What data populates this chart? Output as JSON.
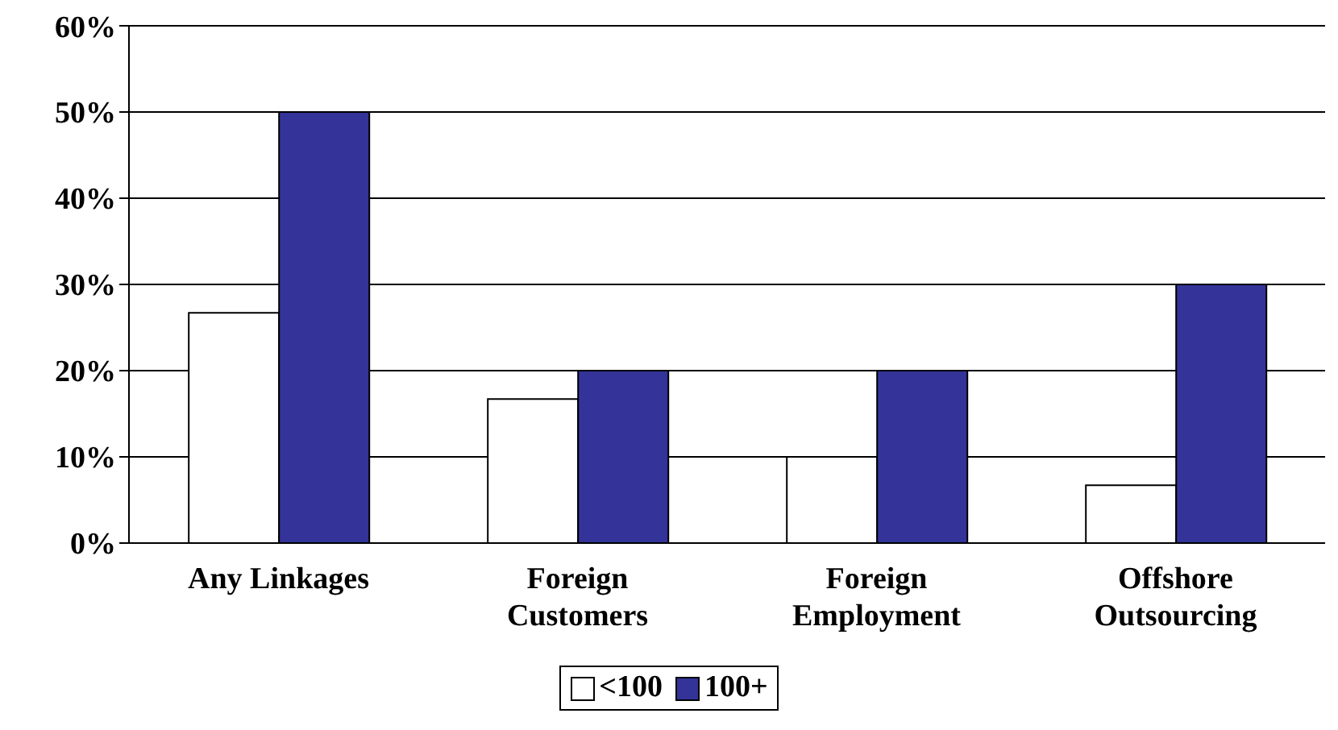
{
  "chart_data": {
    "type": "bar",
    "categories": [
      "Any Linkages",
      "Foreign Customers",
      "Foreign Employment",
      "Offshore Outsourcing"
    ],
    "series": [
      {
        "name": "<100",
        "color": "#ffffff",
        "values": [
          26.7,
          16.7,
          10,
          6.7
        ]
      },
      {
        "name": "100+",
        "color": "#333399",
        "values": [
          50,
          20,
          20,
          30
        ]
      }
    ],
    "ylim": [
      0,
      60
    ],
    "yticks": [
      {
        "value": 0,
        "label": "0%"
      },
      {
        "value": 10,
        "label": "10%"
      },
      {
        "value": 20,
        "label": "20%"
      },
      {
        "value": 30,
        "label": "30%"
      },
      {
        "value": 40,
        "label": "40%"
      },
      {
        "value": 50,
        "label": "50%"
      },
      {
        "value": 60,
        "label": "60%"
      }
    ],
    "grid": "y",
    "legend": "bottom"
  }
}
